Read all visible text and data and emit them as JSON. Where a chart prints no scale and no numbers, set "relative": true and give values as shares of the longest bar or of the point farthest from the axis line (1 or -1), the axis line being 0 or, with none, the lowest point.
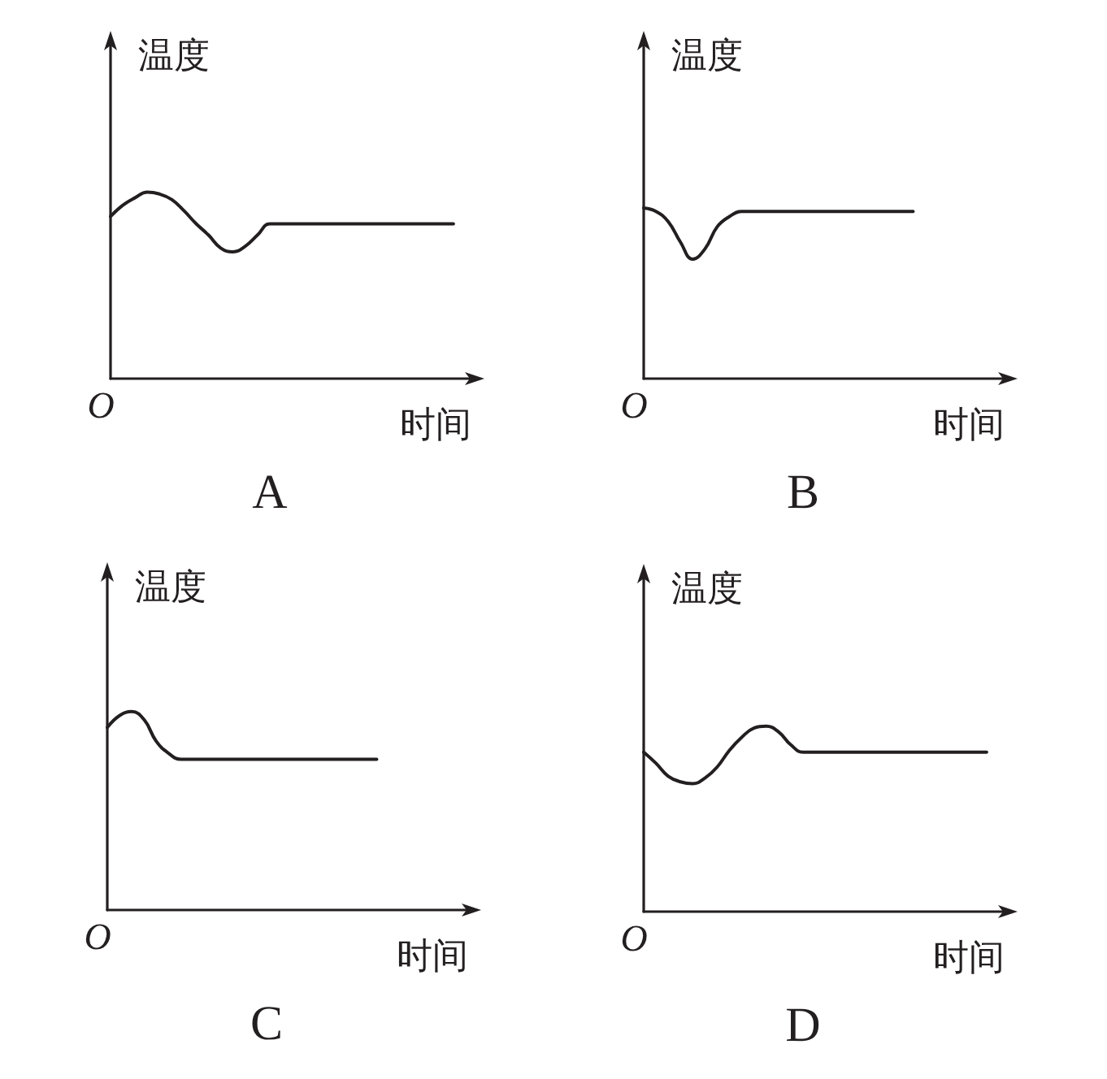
{
  "chart_data": [
    {
      "type": "line",
      "title": "A",
      "xlabel": "时间",
      "ylabel": "温度",
      "annotations": [
        "O"
      ],
      "relative": true,
      "color": "#231f20",
      "categories": [
        null,
        null,
        null,
        null,
        null,
        null,
        null,
        null,
        null,
        null,
        null,
        null,
        null,
        null,
        null,
        null,
        null,
        null,
        null,
        null,
        null,
        null,
        null,
        null,
        null,
        null,
        null,
        null,
        null,
        null,
        null
      ],
      "values": [
        0.87,
        0.93,
        0.97,
        1,
        0.99,
        0.96,
        0.9,
        0.83,
        0.77,
        0.7,
        0.68,
        0.71,
        0.77,
        0.83,
        0.83,
        0.83,
        0.83,
        0.83,
        0.83,
        0.83,
        0.83,
        0.83,
        0.83,
        0.83,
        0.83,
        0.83,
        0.83,
        0.83,
        0.83,
        null,
        null
      ]
    },
    {
      "type": "line",
      "title": "B",
      "xlabel": "时间",
      "ylabel": "温度",
      "annotations": [
        "O"
      ],
      "relative": true,
      "color": "#231f20",
      "categories": [
        null,
        null,
        null,
        null,
        null,
        null,
        null,
        null,
        null,
        null,
        null,
        null,
        null,
        null,
        null,
        null,
        null,
        null,
        null,
        null,
        null,
        null,
        null,
        null,
        null,
        null,
        null,
        null,
        null,
        null,
        null
      ],
      "values": [
        1,
        0.98,
        0.92,
        0.8,
        0.7,
        0.76,
        0.89,
        0.95,
        0.98,
        0.98,
        0.98,
        0.98,
        0.98,
        0.98,
        0.98,
        0.98,
        0.98,
        0.98,
        0.98,
        0.98,
        0.98,
        0.98,
        0.98,
        null,
        null,
        null,
        null,
        null,
        null,
        null,
        null
      ]
    },
    {
      "type": "line",
      "title": "C",
      "xlabel": "时间",
      "ylabel": "温度",
      "annotations": [
        "O"
      ],
      "relative": true,
      "color": "#231f20",
      "categories": [
        null,
        null,
        null,
        null,
        null,
        null,
        null,
        null,
        null,
        null,
        null,
        null,
        null,
        null,
        null,
        null,
        null,
        null,
        null,
        null,
        null,
        null,
        null,
        null,
        null,
        null,
        null,
        null,
        null,
        null,
        null
      ],
      "values": [
        0.92,
        0.98,
        1,
        0.96,
        0.85,
        0.79,
        0.76,
        0.76,
        0.76,
        0.76,
        0.76,
        0.76,
        0.76,
        0.76,
        0.76,
        0.76,
        0.76,
        0.76,
        0.76,
        0.76,
        0.76,
        0.76,
        0.76,
        null,
        null,
        null,
        null,
        null,
        null,
        null,
        null
      ]
    },
    {
      "type": "line",
      "title": "D",
      "xlabel": "时间",
      "ylabel": "温度",
      "annotations": [
        "O"
      ],
      "relative": true,
      "color": "#231f20",
      "categories": [
        null,
        null,
        null,
        null,
        null,
        null,
        null,
        null,
        null,
        null,
        null,
        null,
        null,
        null,
        null,
        null,
        null,
        null,
        null,
        null,
        null,
        null,
        null,
        null,
        null,
        null,
        null,
        null,
        null,
        null,
        null
      ],
      "values": [
        0.86,
        0.8,
        0.73,
        0.7,
        0.69,
        0.72,
        0.78,
        0.87,
        0.94,
        0.99,
        1,
        0.97,
        0.9,
        0.86,
        0.86,
        0.86,
        0.86,
        0.86,
        0.86,
        0.86,
        0.86,
        0.86,
        0.86,
        0.86,
        0.86,
        0.86,
        0.86,
        0.86,
        0.86,
        null,
        null
      ]
    }
  ]
}
